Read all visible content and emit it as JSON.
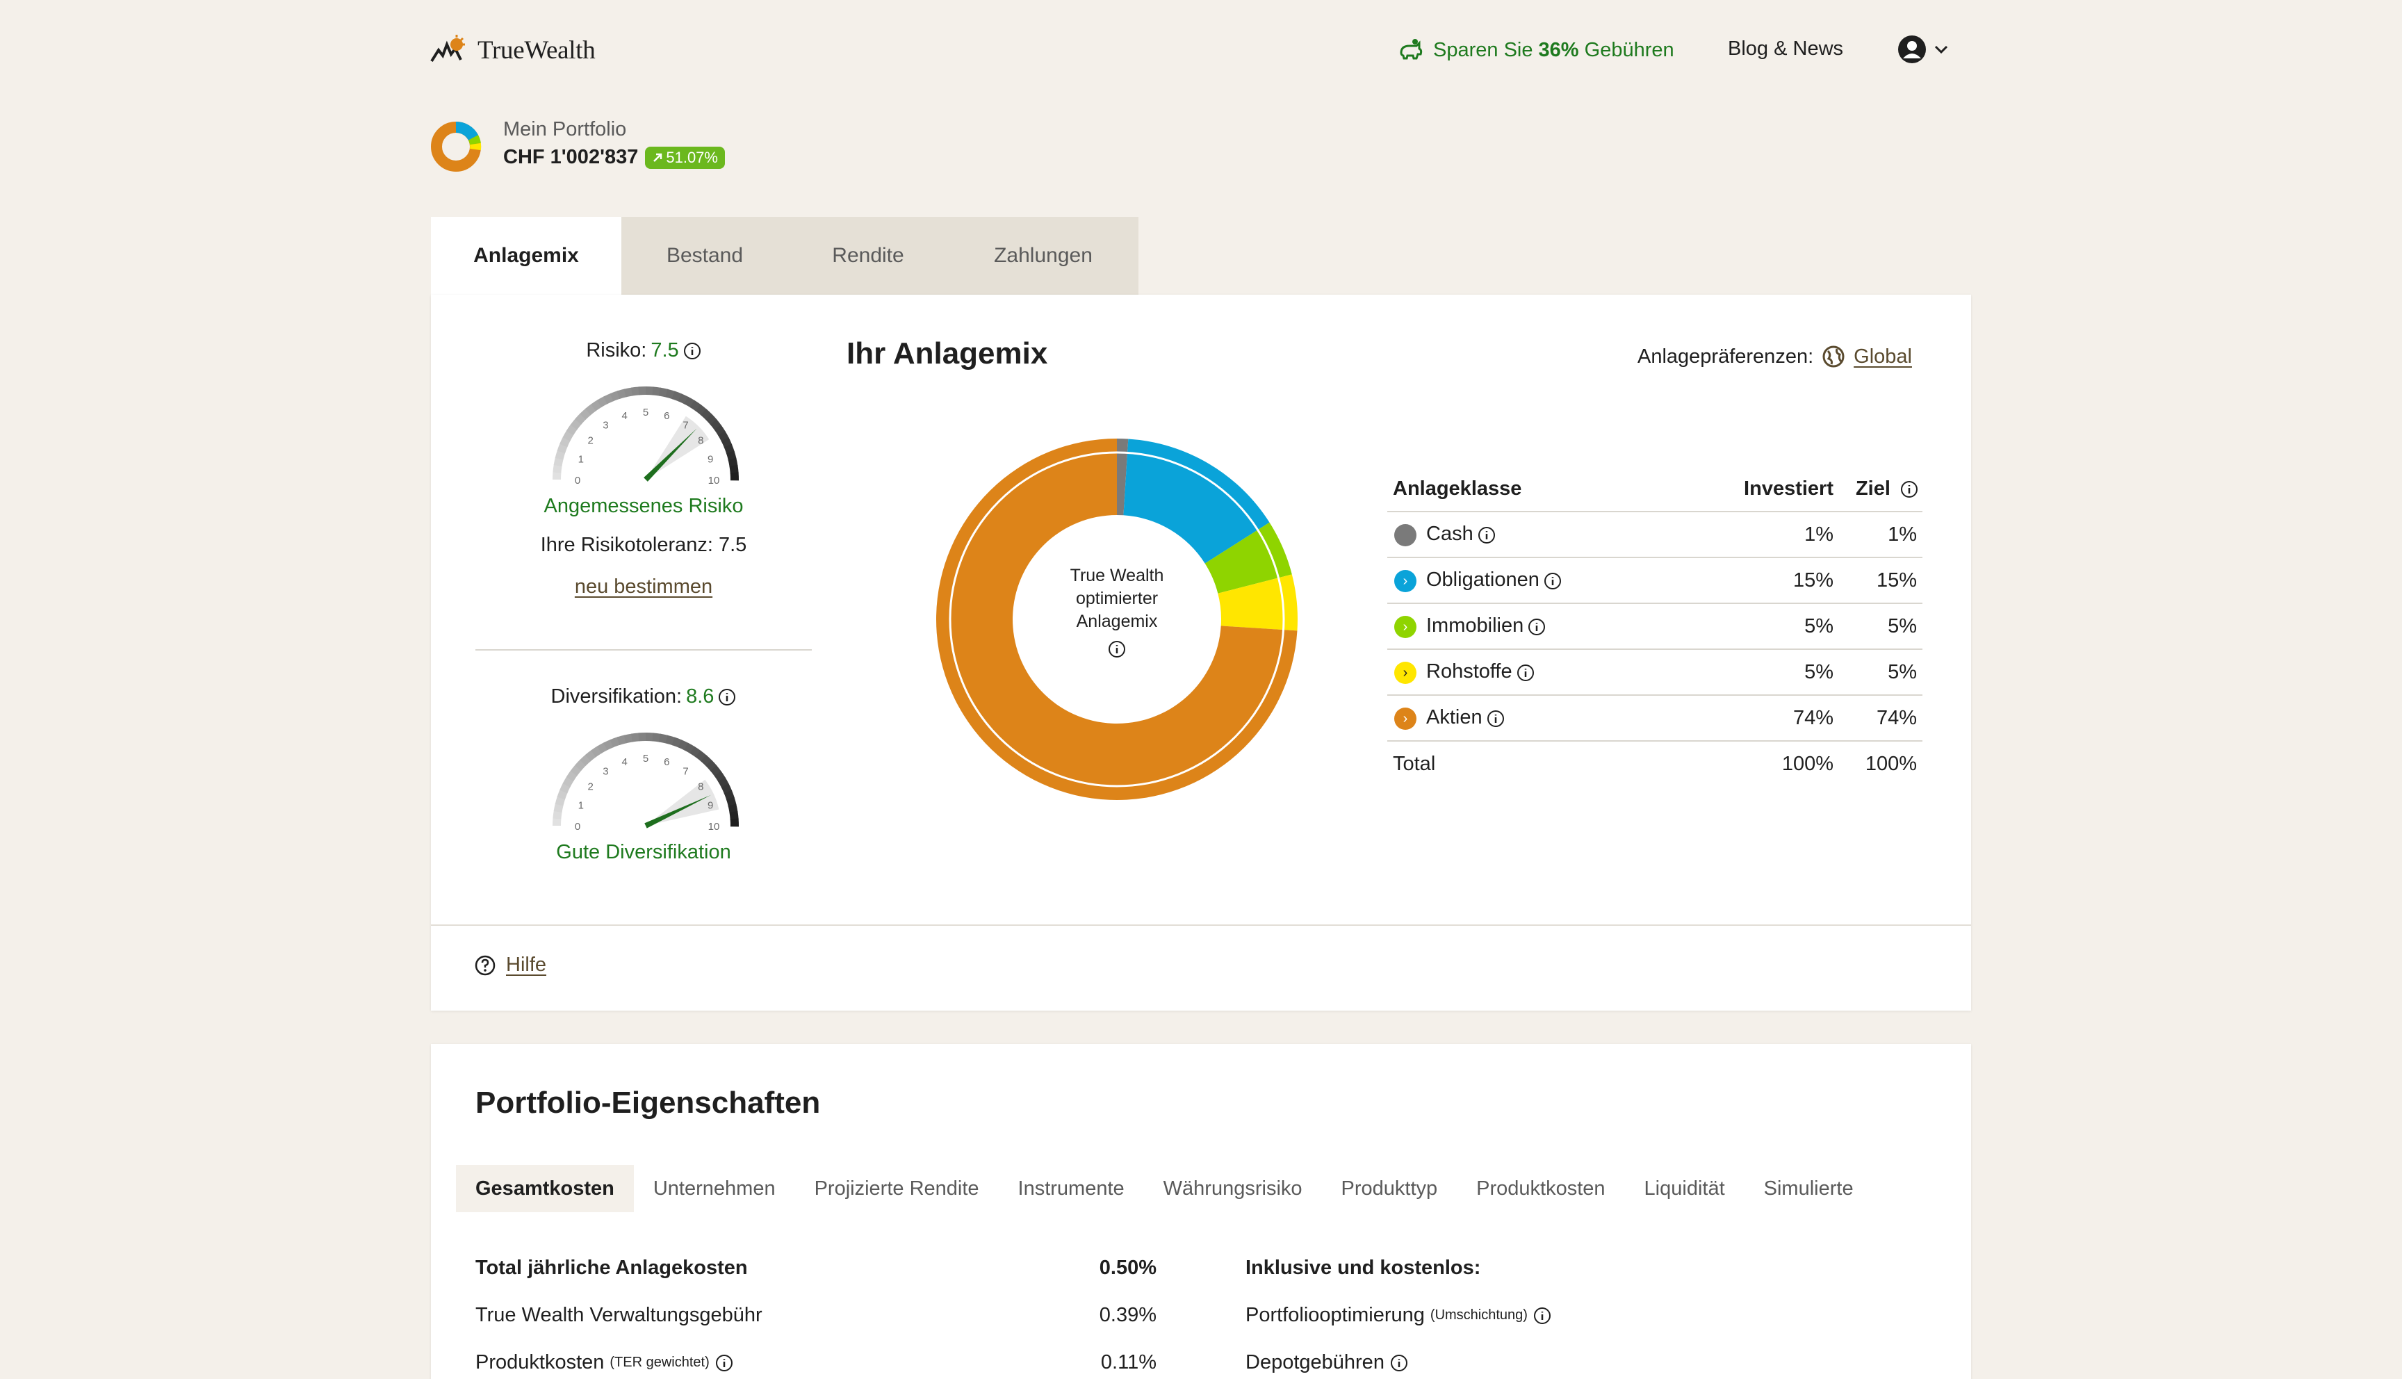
{
  "header": {
    "logo_text": "TrueWealth",
    "promo_prefix": "Sparen Sie ",
    "promo_percent": "36%",
    "promo_suffix": " Gebühren",
    "blog_label": "Blog & News"
  },
  "portfolio": {
    "label": "Mein Portfolio",
    "value": "CHF 1'002'837",
    "change": "51.07%"
  },
  "tabs": [
    "Anlagemix",
    "Bestand",
    "Rendite",
    "Zahlungen"
  ],
  "risk": {
    "title": "Risiko:",
    "value": "7.5",
    "label": "Angemessenes Risiko",
    "tolerance": "Ihre Risikotoleranz: 7.5",
    "link": "neu bestimmen",
    "scale": [
      "0",
      "1",
      "2",
      "3",
      "4",
      "5",
      "6",
      "7",
      "8",
      "9",
      "10"
    ]
  },
  "diversification": {
    "title": "Diversifikation:",
    "value": "8.6",
    "label": "Gute Diversifikation"
  },
  "mix": {
    "title": "Ihr Anlagemix",
    "prefs_label": "Anlagepräferenzen:",
    "prefs_value": "Global",
    "center_line1": "True Wealth",
    "center_line2": "optimierter",
    "center_line3": "Anlagemix"
  },
  "table": {
    "headers": [
      "Anlageklasse",
      "Investiert",
      "Ziel"
    ],
    "rows": [
      {
        "name": "Cash",
        "invested": "1%",
        "target": "1%",
        "color": "#7a7a7a"
      },
      {
        "name": "Obligationen",
        "invested": "15%",
        "target": "15%",
        "color": "#0aa3d9"
      },
      {
        "name": "Immobilien",
        "invested": "5%",
        "target": "5%",
        "color": "#8fd400"
      },
      {
        "name": "Rohstoffe",
        "invested": "5%",
        "target": "5%",
        "color": "#ffe600"
      },
      {
        "name": "Aktien",
        "invested": "74%",
        "target": "74%",
        "color": "#dd8419"
      }
    ],
    "total_label": "Total",
    "total_invested": "100%",
    "total_target": "100%"
  },
  "help_label": "Hilfe",
  "properties": {
    "title": "Portfolio-Eigenschaften",
    "tabs": [
      "Gesamtkosten",
      "Unternehmen",
      "Projizierte Rendite",
      "Instrumente",
      "Währungsrisiko",
      "Produkttyp",
      "Produktkosten",
      "Liquidität",
      "Simulierte"
    ],
    "costs": {
      "total_label": "Total jährliche Anlagekosten",
      "total_value": "0.50%",
      "fee_label": "True Wealth Verwaltungsgebühr",
      "fee_value": "0.39%",
      "product_label": "Produktkosten",
      "product_note": "(TER gewichtet)",
      "product_value": "0.11%",
      "included_title": "Inklusive und kostenlos:",
      "included_1": "Portfoliooptimierung",
      "included_1_note": "(Umschichtung)",
      "included_2": "Depotgebühren"
    }
  },
  "colors": {
    "accent_green": "#1e7a1e",
    "badge_green": "#6bb81e",
    "cash": "#7a7a7a",
    "bonds": "#0aa3d9",
    "realestate": "#8fd400",
    "commodities": "#ffe600",
    "equities": "#dd8419"
  }
}
